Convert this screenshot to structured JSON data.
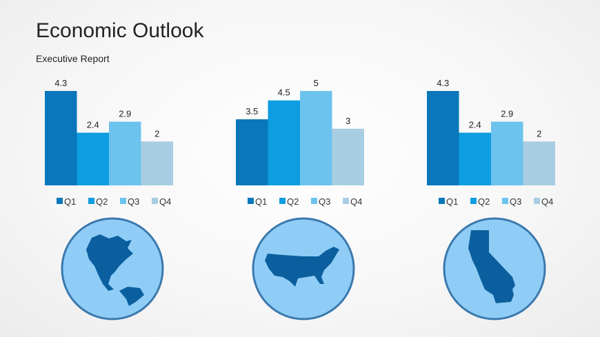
{
  "title": "Economic Outlook",
  "subtitle": "Executive Report",
  "colors": {
    "Q1": "#0a77bb",
    "Q2": "#0d9de0",
    "Q3": "#6cc3ee",
    "Q4": "#a9cde2",
    "circle_fill": "#8fcdf6",
    "circle_stroke": "#3b78ad",
    "map": "#0b5f9e"
  },
  "chart_data": [
    {
      "type": "bar",
      "categories": [
        "Q1",
        "Q2",
        "Q3",
        "Q4"
      ],
      "values": [
        4.3,
        2.4,
        2.9,
        2
      ],
      "legend": [
        "Q1",
        "Q2",
        "Q3",
        "Q4"
      ],
      "ylim": [
        0,
        4.3
      ],
      "map": "north-america"
    },
    {
      "type": "bar",
      "categories": [
        "Q1",
        "Q2",
        "Q3",
        "Q4"
      ],
      "values": [
        3.5,
        4.5,
        5,
        3
      ],
      "legend": [
        "Q1",
        "Q2",
        "Q3",
        "Q4"
      ],
      "ylim": [
        0,
        5
      ],
      "map": "usa"
    },
    {
      "type": "bar",
      "categories": [
        "Q1",
        "Q2",
        "Q3",
        "Q4"
      ],
      "values": [
        4.3,
        2.4,
        2.9,
        2
      ],
      "legend": [
        "Q1",
        "Q2",
        "Q3",
        "Q4"
      ],
      "ylim": [
        0,
        4.3
      ],
      "map": "california"
    }
  ]
}
